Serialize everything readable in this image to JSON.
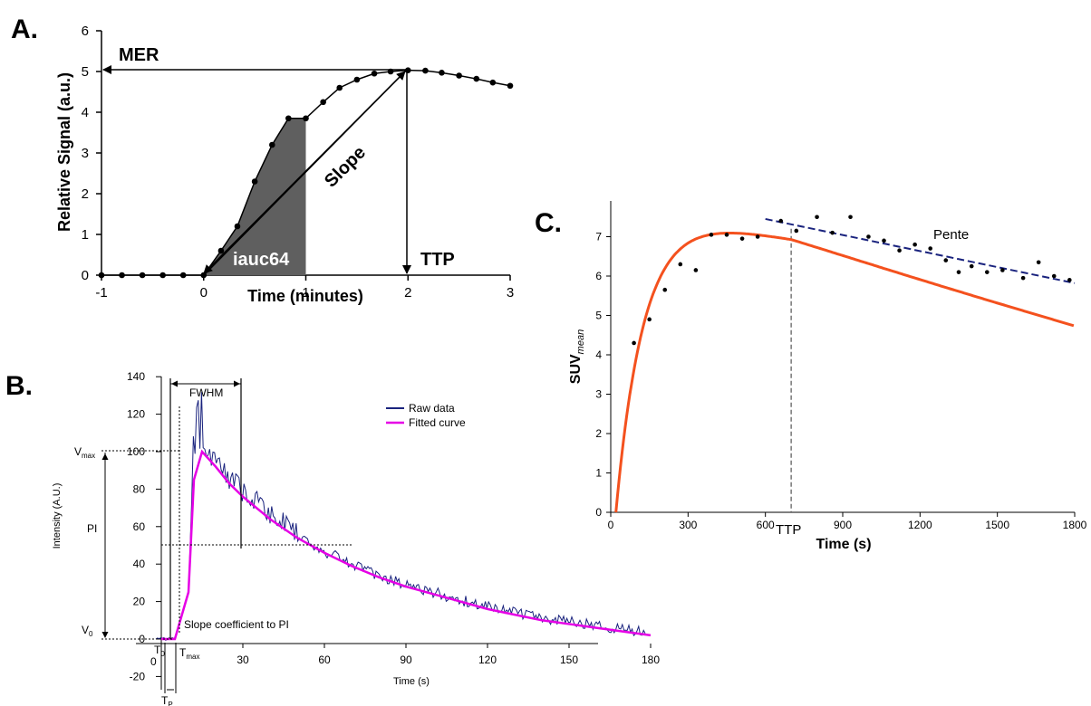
{
  "panels": {
    "a": "A.",
    "b": "B.",
    "c": "C."
  },
  "chart_data": [
    {
      "type": "line",
      "xlabel": "Time (minutes)",
      "ylabel": "Relative Signal (a.u.)",
      "xlim": [
        -1,
        3
      ],
      "ylim": [
        0,
        6
      ],
      "xticks": [
        "-1",
        "0",
        "1",
        "2",
        "3"
      ],
      "yticks": [
        "0",
        "1",
        "2",
        "3",
        "4",
        "5",
        "6"
      ],
      "x": [
        -1,
        -0.8,
        -0.6,
        -0.4,
        -0.2,
        0,
        0.17,
        0.33,
        0.5,
        0.67,
        0.83,
        1.0,
        1.17,
        1.33,
        1.5,
        1.67,
        1.83,
        2.0,
        2.17,
        2.33,
        2.5,
        2.67,
        2.83,
        3.0
      ],
      "y": [
        0,
        0,
        0,
        0,
        0,
        0,
        0.6,
        1.2,
        2.3,
        3.2,
        3.85,
        3.85,
        4.25,
        4.6,
        4.8,
        4.95,
        5.0,
        5.03,
        5.02,
        4.97,
        4.9,
        4.82,
        4.73,
        4.65
      ],
      "annotations": {
        "mer": "MER",
        "ttp": "TTP",
        "slope": "Slope",
        "area": "iauc64"
      },
      "shaded_area_x": [
        0,
        1
      ]
    },
    {
      "type": "line",
      "xlabel": "Time (s)",
      "ylabel": "Intensity (A.U.)",
      "xlim": [
        -20,
        180
      ],
      "ylim": [
        -20,
        140
      ],
      "xticks": [
        "30",
        "60",
        "90",
        "120",
        "150",
        "180"
      ],
      "yticks": [
        "-20",
        "0",
        "20",
        "40",
        "60",
        "80",
        "100",
        "120",
        "140"
      ],
      "series": [
        {
          "name": "Raw data",
          "color": "#1a237e"
        },
        {
          "name": "Fitted curve",
          "color": "#e600e6"
        }
      ],
      "fitted_x": [
        0,
        5,
        10,
        12,
        15,
        20,
        25,
        30,
        40,
        50,
        60,
        70,
        80,
        90,
        100,
        110,
        120,
        130,
        140,
        150,
        160,
        170,
        180
      ],
      "fitted_y": [
        0,
        0,
        25,
        85,
        100,
        92,
        83,
        76,
        64,
        54,
        46,
        39,
        33,
        28,
        24,
        20,
        16,
        13,
        10,
        8,
        6,
        4,
        2
      ],
      "annotations": {
        "fwhm": "FWHM",
        "vmax": "V",
        "vmax_sub": "max",
        "v0": "V",
        "v0_sub": "0",
        "pi": "PI",
        "slope_note": "Slope coefficient to PI",
        "t0": "T",
        "t0_sub": "0",
        "tmax": "T",
        "tmax_sub": "max",
        "tp": "T",
        "tp_sub": "P",
        "zero": "0"
      }
    },
    {
      "type": "scatter",
      "xlabel": "Time (s)",
      "ylabel": "SUV",
      "ylabel_sub": "mean",
      "xlim": [
        0,
        1800
      ],
      "ylim": [
        0,
        7.8
      ],
      "xticks": [
        "0",
        "300",
        "600",
        "900",
        "1200",
        "1500",
        "1800"
      ],
      "yticks": [
        "0",
        "1",
        "2",
        "3",
        "4",
        "5",
        "6",
        "7"
      ],
      "x": [
        90,
        150,
        210,
        270,
        330,
        390,
        450,
        510,
        570,
        660,
        720,
        800,
        860,
        930,
        1000,
        1060,
        1120,
        1180,
        1240,
        1300,
        1350,
        1400,
        1460,
        1520,
        1600,
        1660,
        1720,
        1780
      ],
      "y": [
        4.3,
        4.9,
        5.65,
        6.3,
        6.15,
        7.05,
        7.05,
        6.95,
        7.0,
        7.4,
        7.15,
        7.5,
        7.1,
        7.5,
        7.0,
        6.9,
        6.65,
        6.8,
        6.7,
        6.4,
        6.1,
        6.25,
        6.1,
        6.15,
        5.95,
        6.35,
        6.0,
        5.9
      ],
      "fit_color": "#f4511e",
      "trend_color": "#1a237e",
      "annotations": {
        "pente": "Pente",
        "ttp": "TTP"
      },
      "ttp_x": 700
    }
  ]
}
